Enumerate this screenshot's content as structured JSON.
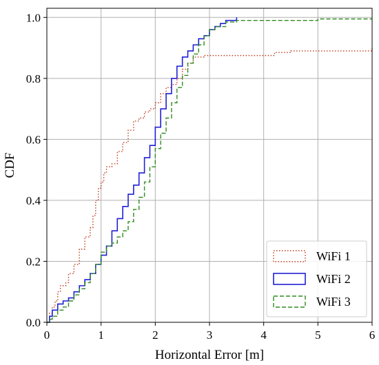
{
  "chart_data": {
    "type": "line",
    "title": "",
    "xlabel": "Horizontal Error [m]",
    "ylabel": "CDF",
    "xlim": [
      0,
      6
    ],
    "ylim": [
      0,
      1.03
    ],
    "x_ticks": [
      0,
      1,
      2,
      3,
      4,
      5,
      6
    ],
    "y_ticks": [
      0.0,
      0.2,
      0.4,
      0.6,
      0.8,
      1.0
    ],
    "x_tick_labels": [
      "0",
      "1",
      "2",
      "3",
      "4",
      "5",
      "6"
    ],
    "y_tick_labels": [
      "0.0",
      "0.2",
      "0.4",
      "0.6",
      "0.8",
      "1.0"
    ],
    "grid": true,
    "legend_position": "bottom-right",
    "series": [
      {
        "name": "WiFi 1",
        "color": "#c0391b",
        "style": "dotted",
        "points": [
          [
            0,
            0
          ],
          [
            0.05,
            0.03
          ],
          [
            0.1,
            0.05
          ],
          [
            0.15,
            0.07
          ],
          [
            0.2,
            0.1
          ],
          [
            0.25,
            0.12
          ],
          [
            0.35,
            0.13
          ],
          [
            0.4,
            0.16
          ],
          [
            0.5,
            0.19
          ],
          [
            0.6,
            0.24
          ],
          [
            0.7,
            0.28
          ],
          [
            0.8,
            0.31
          ],
          [
            0.85,
            0.35
          ],
          [
            0.9,
            0.4
          ],
          [
            0.95,
            0.44
          ],
          [
            1.0,
            0.46
          ],
          [
            1.05,
            0.49
          ],
          [
            1.1,
            0.51
          ],
          [
            1.2,
            0.52
          ],
          [
            1.3,
            0.56
          ],
          [
            1.4,
            0.59
          ],
          [
            1.5,
            0.63
          ],
          [
            1.6,
            0.66
          ],
          [
            1.7,
            0.67
          ],
          [
            1.8,
            0.69
          ],
          [
            1.9,
            0.7
          ],
          [
            2.0,
            0.72
          ],
          [
            2.1,
            0.75
          ],
          [
            2.2,
            0.77
          ],
          [
            2.3,
            0.78
          ],
          [
            2.4,
            0.8
          ],
          [
            2.5,
            0.83
          ],
          [
            2.6,
            0.85
          ],
          [
            2.7,
            0.87
          ],
          [
            2.9,
            0.875
          ],
          [
            3.1,
            0.875
          ],
          [
            3.5,
            0.875
          ],
          [
            4.0,
            0.875
          ],
          [
            4.2,
            0.885
          ],
          [
            4.5,
            0.89
          ],
          [
            5.0,
            0.89
          ],
          [
            5.5,
            0.89
          ],
          [
            6.0,
            0.9
          ]
        ]
      },
      {
        "name": "WiFi 2",
        "color": "#1f1fd4",
        "style": "solid",
        "points": [
          [
            0,
            0
          ],
          [
            0.05,
            0.02
          ],
          [
            0.1,
            0.04
          ],
          [
            0.2,
            0.06
          ],
          [
            0.3,
            0.07
          ],
          [
            0.4,
            0.08
          ],
          [
            0.5,
            0.1
          ],
          [
            0.6,
            0.12
          ],
          [
            0.7,
            0.14
          ],
          [
            0.8,
            0.16
          ],
          [
            0.9,
            0.19
          ],
          [
            1.0,
            0.22
          ],
          [
            1.1,
            0.25
          ],
          [
            1.2,
            0.3
          ],
          [
            1.3,
            0.34
          ],
          [
            1.4,
            0.38
          ],
          [
            1.5,
            0.42
          ],
          [
            1.6,
            0.45
          ],
          [
            1.7,
            0.49
          ],
          [
            1.8,
            0.54
          ],
          [
            1.9,
            0.58
          ],
          [
            2.0,
            0.64
          ],
          [
            2.1,
            0.7
          ],
          [
            2.2,
            0.75
          ],
          [
            2.3,
            0.8
          ],
          [
            2.4,
            0.84
          ],
          [
            2.5,
            0.87
          ],
          [
            2.6,
            0.89
          ],
          [
            2.7,
            0.91
          ],
          [
            2.8,
            0.93
          ],
          [
            2.9,
            0.94
          ],
          [
            3.0,
            0.96
          ],
          [
            3.1,
            0.97
          ],
          [
            3.2,
            0.98
          ],
          [
            3.3,
            0.99
          ],
          [
            3.5,
            1.0
          ]
        ]
      },
      {
        "name": "WiFi 3",
        "color": "#2e8b1e",
        "style": "dashed",
        "points": [
          [
            0,
            0
          ],
          [
            0.05,
            0.01
          ],
          [
            0.1,
            0.02
          ],
          [
            0.2,
            0.04
          ],
          [
            0.3,
            0.05
          ],
          [
            0.4,
            0.07
          ],
          [
            0.5,
            0.09
          ],
          [
            0.6,
            0.11
          ],
          [
            0.7,
            0.13
          ],
          [
            0.8,
            0.16
          ],
          [
            0.9,
            0.19
          ],
          [
            1.0,
            0.23
          ],
          [
            1.1,
            0.25
          ],
          [
            1.2,
            0.26
          ],
          [
            1.3,
            0.28
          ],
          [
            1.4,
            0.3
          ],
          [
            1.5,
            0.33
          ],
          [
            1.6,
            0.37
          ],
          [
            1.7,
            0.41
          ],
          [
            1.8,
            0.46
          ],
          [
            1.9,
            0.51
          ],
          [
            2.0,
            0.57
          ],
          [
            2.1,
            0.62
          ],
          [
            2.2,
            0.67
          ],
          [
            2.3,
            0.72
          ],
          [
            2.4,
            0.77
          ],
          [
            2.5,
            0.81
          ],
          [
            2.6,
            0.85
          ],
          [
            2.7,
            0.88
          ],
          [
            2.8,
            0.91
          ],
          [
            2.9,
            0.94
          ],
          [
            3.0,
            0.96
          ],
          [
            3.1,
            0.97
          ],
          [
            3.3,
            0.985
          ],
          [
            3.5,
            0.99
          ],
          [
            4.0,
            0.99
          ],
          [
            4.5,
            0.99
          ],
          [
            4.9,
            0.99
          ],
          [
            5.0,
            0.995
          ],
          [
            6.0,
            0.995
          ]
        ]
      }
    ]
  }
}
